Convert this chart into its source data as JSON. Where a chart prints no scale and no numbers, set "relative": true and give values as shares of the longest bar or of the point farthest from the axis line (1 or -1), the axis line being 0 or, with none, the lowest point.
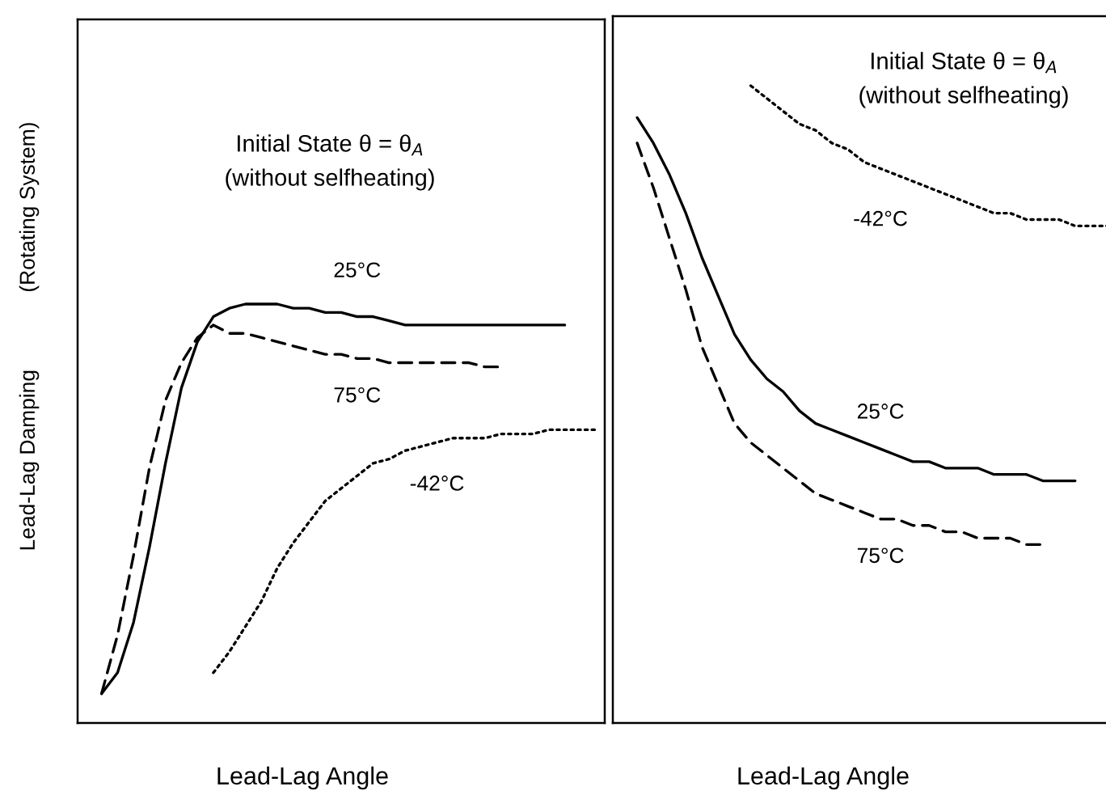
{
  "chart_data": [
    {
      "type": "line",
      "relative": true,
      "ylabel": "Lead-Lag Damping             (Rotating System)",
      "xlabel": "Lead-Lag Angle",
      "annotations": [
        "Initial State θ = θ$_{A}$",
        "(without selfheating)"
      ],
      "categories": [
        null,
        null,
        null,
        null,
        null,
        null,
        null,
        null,
        null,
        null,
        null,
        null,
        null,
        null,
        null,
        null,
        null,
        null,
        null,
        null,
        null,
        null,
        null,
        null,
        null,
        null,
        null,
        null,
        null,
        null,
        null,
        null,
        null
      ],
      "series": [
        {
          "name": "25°C",
          "color": "#000000",
          "line_style": "solid",
          "values": [
            null,
            0.07,
            0.12,
            0.24,
            0.42,
            0.62,
            0.8,
            0.91,
            0.97,
            0.99,
            1.0,
            1.0,
            1.0,
            0.99,
            0.99,
            0.98,
            0.98,
            0.97,
            0.97,
            0.96,
            0.95,
            0.95,
            0.95,
            0.95,
            0.95,
            0.95,
            0.95,
            0.95,
            0.95,
            0.95,
            0.95,
            null,
            null
          ]
        },
        {
          "name": "75°C",
          "color": "#000000",
          "line_style": "dashed",
          "values": [
            null,
            0.07,
            0.21,
            0.4,
            0.61,
            0.77,
            0.86,
            0.92,
            0.95,
            0.93,
            0.93,
            0.92,
            0.91,
            0.9,
            0.89,
            0.88,
            0.88,
            0.87,
            0.87,
            0.86,
            0.86,
            0.86,
            0.86,
            0.86,
            0.86,
            0.85,
            0.85,
            null,
            null,
            null,
            null,
            null,
            null
          ]
        },
        {
          "name": "-42°C",
          "color": "#000000",
          "line_style": "dotted",
          "values": [
            null,
            null,
            null,
            null,
            null,
            null,
            null,
            null,
            0.12,
            0.17,
            0.23,
            0.29,
            0.37,
            0.43,
            0.48,
            0.53,
            0.56,
            0.59,
            0.62,
            0.63,
            0.65,
            0.66,
            0.67,
            0.68,
            0.68,
            0.68,
            0.69,
            0.69,
            0.69,
            0.7,
            0.7,
            0.7,
            0.7
          ]
        }
      ]
    },
    {
      "type": "line",
      "relative": true,
      "xlabel": "Lead-Lag Angle",
      "annotations": [
        "Initial State θ = θ$_{A}$",
        "(without selfheating)"
      ],
      "categories": [
        null,
        null,
        null,
        null,
        null,
        null,
        null,
        null,
        null,
        null,
        null,
        null,
        null,
        null,
        null,
        null,
        null,
        null,
        null,
        null,
        null,
        null,
        null,
        null,
        null,
        null,
        null,
        null,
        null,
        null,
        null
      ],
      "series": [
        {
          "name": "25°C",
          "color": "#000000",
          "line_style": "solid",
          "values": [
            null,
            0.95,
            0.91,
            0.86,
            0.8,
            0.73,
            0.67,
            0.61,
            0.57,
            0.54,
            0.52,
            0.49,
            0.47,
            0.46,
            0.45,
            0.44,
            0.43,
            0.42,
            0.41,
            0.41,
            0.4,
            0.4,
            0.4,
            0.39,
            0.39,
            0.39,
            0.38,
            0.38,
            0.38,
            null,
            null
          ]
        },
        {
          "name": "75°C",
          "color": "#000000",
          "line_style": "dashed",
          "values": [
            null,
            0.91,
            0.84,
            0.76,
            0.68,
            0.59,
            0.53,
            0.47,
            0.44,
            0.42,
            0.4,
            0.38,
            0.36,
            0.35,
            0.34,
            0.33,
            0.32,
            0.32,
            0.31,
            0.31,
            0.3,
            0.3,
            0.29,
            0.29,
            0.29,
            0.28,
            0.28,
            null,
            null,
            null,
            null
          ]
        },
        {
          "name": "-42°C",
          "color": "#000000",
          "line_style": "dotted",
          "values": [
            null,
            null,
            null,
            null,
            null,
            null,
            null,
            null,
            1.0,
            0.98,
            0.96,
            0.94,
            0.93,
            0.91,
            0.9,
            0.88,
            0.87,
            0.86,
            0.85,
            0.84,
            0.83,
            0.82,
            0.81,
            0.8,
            0.8,
            0.79,
            0.79,
            0.79,
            0.78,
            0.78,
            0.78
          ]
        }
      ]
    }
  ]
}
